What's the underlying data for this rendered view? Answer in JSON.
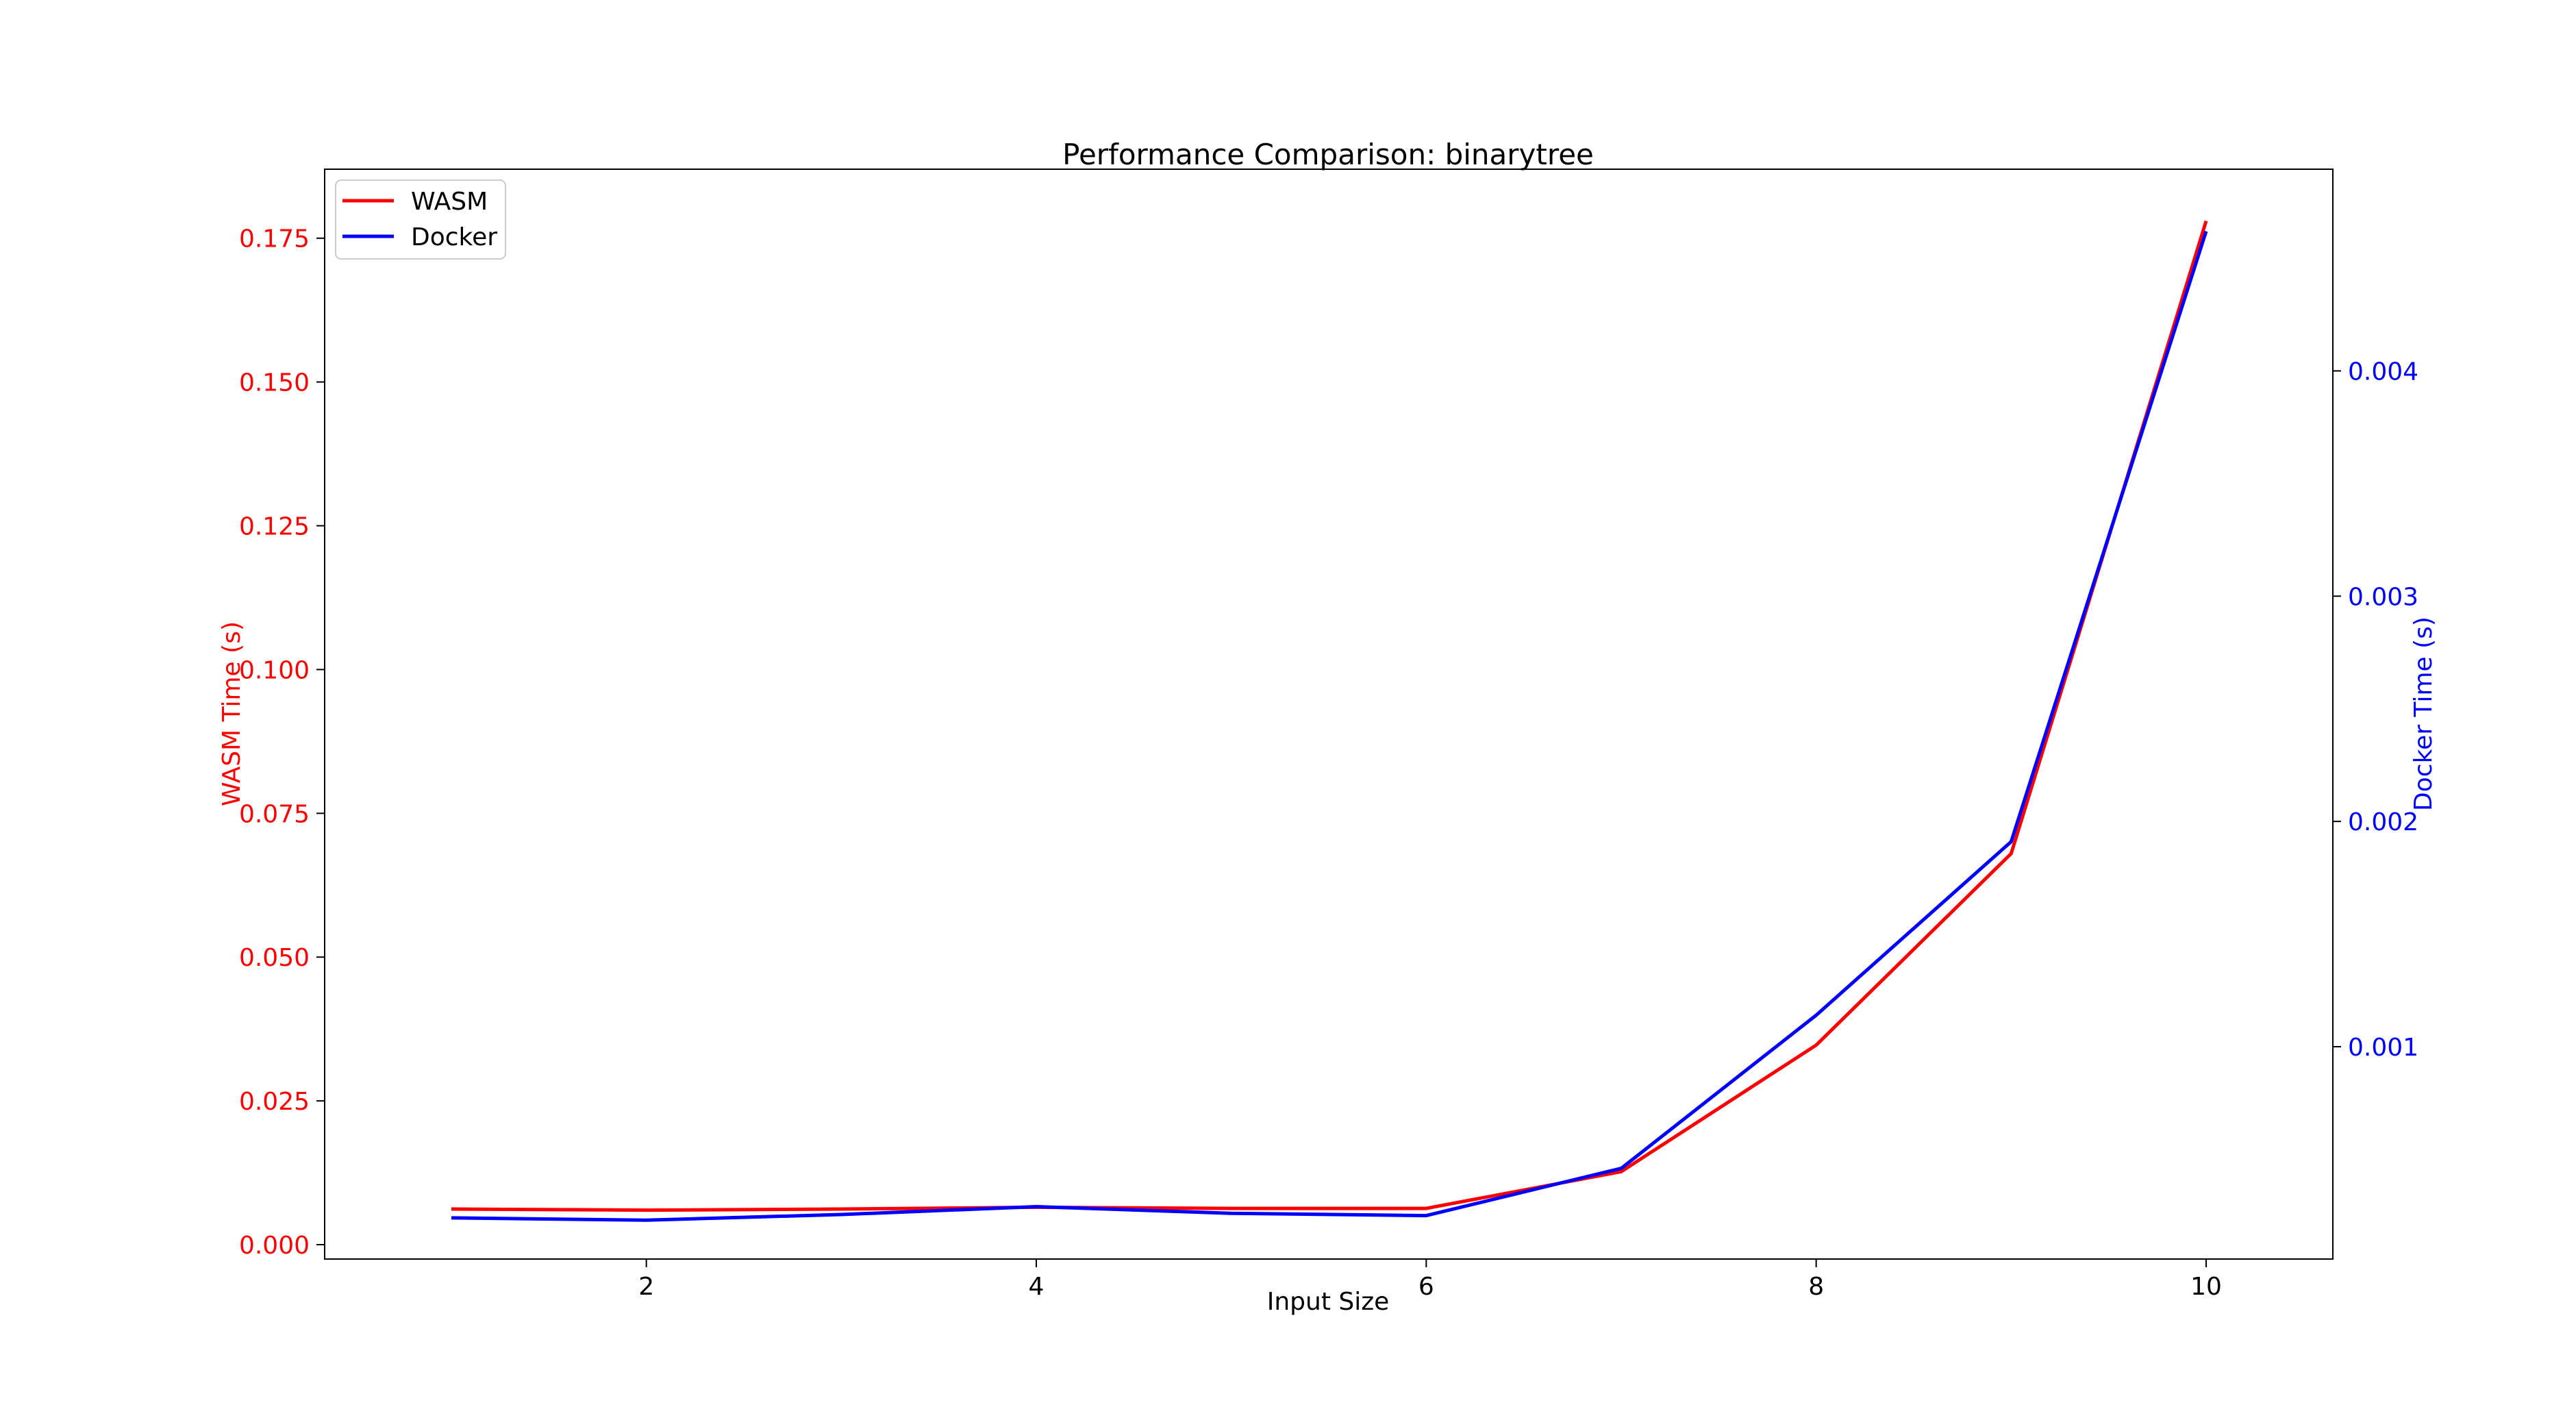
{
  "chart_data": {
    "type": "line",
    "title": "Performance Comparison: binarytree",
    "xlabel": "Input Size",
    "x": [
      1,
      2,
      3,
      4,
      5,
      6,
      7,
      8,
      9,
      10
    ],
    "xlim": [
      0.35,
      10.65
    ],
    "xticks": [
      2,
      4,
      6,
      8,
      10
    ],
    "y_axes": {
      "left": {
        "label": "WASM Time (s)",
        "color": "#ff0000",
        "ylim": [
          -0.0025,
          0.187
        ],
        "ticks": [
          0.0,
          0.025,
          0.05,
          0.075,
          0.1,
          0.125,
          0.15,
          0.175
        ],
        "tick_labels": [
          "0.000",
          "0.025",
          "0.050",
          "0.075",
          "0.100",
          "0.125",
          "0.150",
          "0.175"
        ]
      },
      "right": {
        "label": "Docker Time (s)",
        "color": "#0000ff",
        "ylim": [
          5.73e-05,
          0.0048954
        ],
        "ticks": [
          0.001,
          0.002,
          0.003,
          0.004
        ],
        "tick_labels": [
          "0.001",
          "0.002",
          "0.003",
          "0.004"
        ]
      }
    },
    "series": [
      {
        "name": "WASM",
        "axis": "left",
        "color": "#ff0000",
        "values": [
          0.0062,
          0.006,
          0.0062,
          0.0065,
          0.0063,
          0.0063,
          0.0127,
          0.0347,
          0.068,
          0.178
        ]
      },
      {
        "name": "Docker",
        "axis": "right",
        "color": "#0000ff",
        "values": [
          0.00024,
          0.00023,
          0.000255,
          0.00029,
          0.00026,
          0.00025,
          0.00046,
          0.00114,
          0.00191,
          0.00462
        ]
      }
    ],
    "legend": "top-left",
    "grid": false
  }
}
